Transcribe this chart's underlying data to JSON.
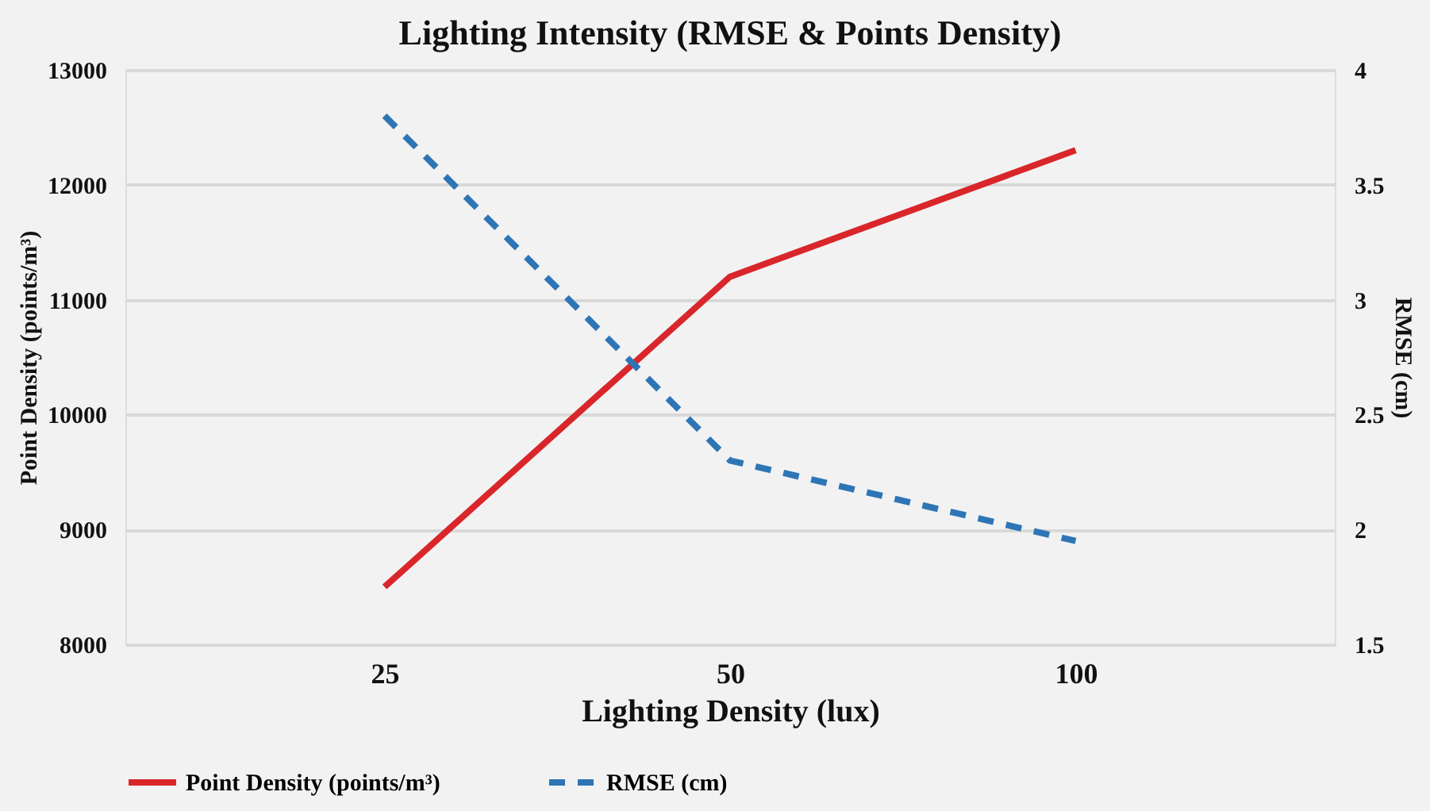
{
  "chart_data": {
    "type": "line",
    "title": "Lighting Intensity (RMSE & Points Density)",
    "xlabel": "Lighting Density (lux)",
    "ylabel": "Point Density (points/m³)",
    "y2label": "RMSE (cm)",
    "categories": [
      "25",
      "50",
      "100"
    ],
    "series": [
      {
        "name": "Point Density (points/m³)",
        "color": "#d9262a",
        "values": [
          8500,
          11200,
          12300
        ],
        "line_style": "solid"
      },
      {
        "name": "RMSE (cm)",
        "color": "#2e75b6",
        "values": [
          3.8,
          2.3,
          1.95
        ],
        "axis": "y2",
        "line_style": "dashed"
      }
    ],
    "ylim": [
      8000,
      13000
    ],
    "yticks": [
      8000,
      9000,
      10000,
      11000,
      12000,
      13000
    ],
    "y2lim": [
      1.5,
      4
    ],
    "y2ticks": [
      1.5,
      2,
      2.5,
      3,
      3.5,
      4
    ],
    "grid": "y",
    "legend": "bottom",
    "marker": "none"
  }
}
